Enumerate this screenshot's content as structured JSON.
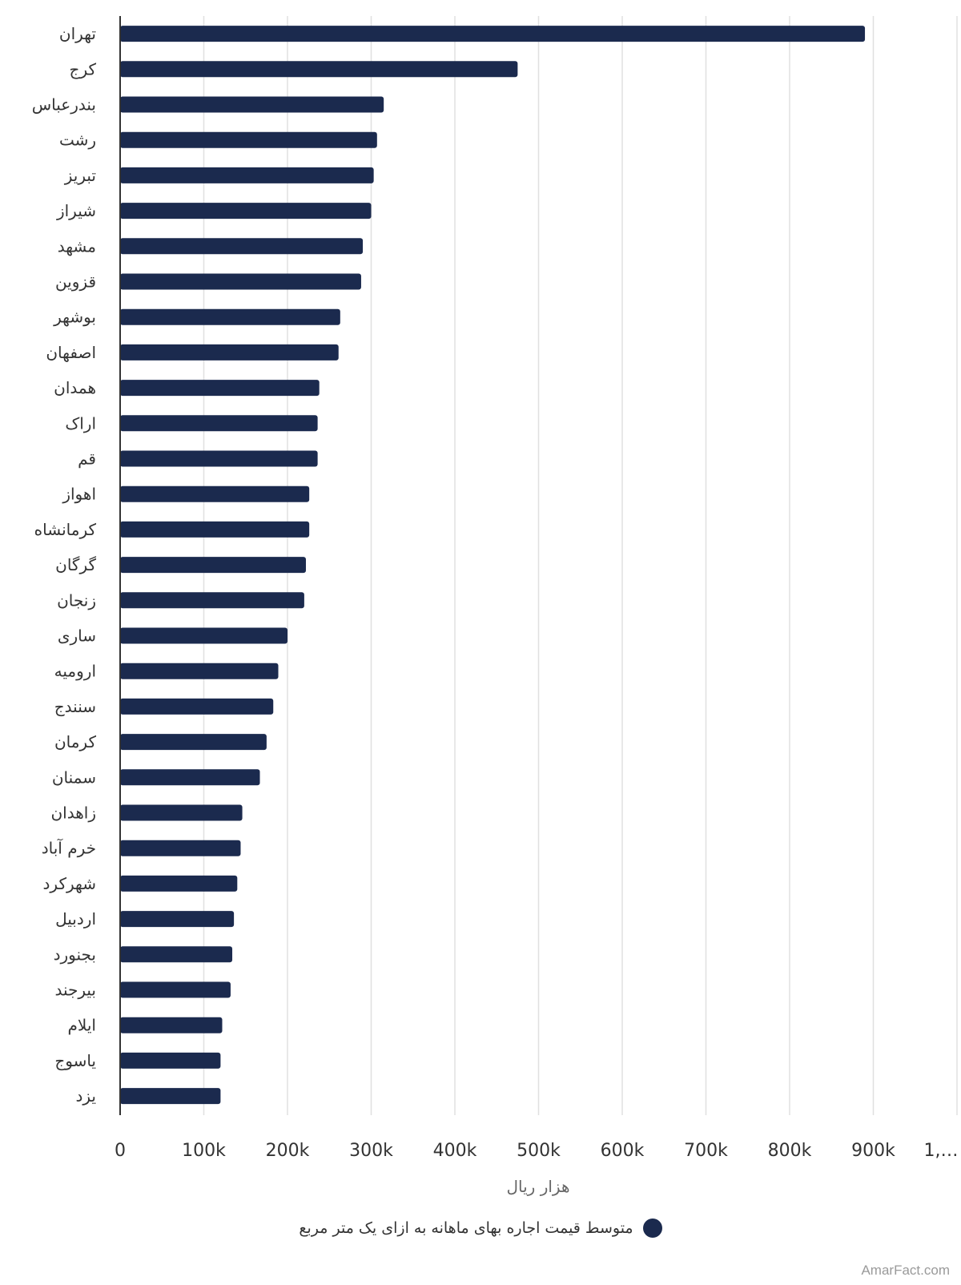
{
  "chart_data": {
    "type": "bar",
    "orientation": "horizontal",
    "categories": [
      "تهران",
      "کرج",
      "بندرعباس",
      "رشت",
      "تبریز",
      "شیراز",
      "مشهد",
      "قزوین",
      "بوشهر",
      "اصفهان",
      "همدان",
      "اراک",
      "قم",
      "اهواز",
      "کرمانشاه",
      "گرگان",
      "زنجان",
      "ساری",
      "ارومیه",
      "سنندج",
      "کرمان",
      "سمنان",
      "زاهدان",
      "خرم آباد",
      "شهرکرد",
      "اردبیل",
      "بجنورد",
      "بیرجند",
      "ایلام",
      "یاسوج",
      "یزد"
    ],
    "series": [
      {
        "name": "متوسط قیمت اجاره بهای ماهانه به ازای یک متر مربع",
        "color": "#1b2a4e",
        "values": [
          890000,
          475000,
          315000,
          307000,
          303000,
          300000,
          290000,
          288000,
          263000,
          261000,
          238000,
          236000,
          236000,
          226000,
          226000,
          222000,
          220000,
          200000,
          189000,
          183000,
          175000,
          167000,
          146000,
          144000,
          140000,
          136000,
          134000,
          132000,
          122000,
          120000,
          120000
        ]
      }
    ],
    "xlim": [
      0,
      1000000
    ],
    "x_ticks": [
      "0",
      "100k",
      "200k",
      "300k",
      "400k",
      "500k",
      "600k",
      "700k",
      "800k",
      "900k",
      "1,…"
    ],
    "xlabel": "هزار ریال",
    "ylabel": "",
    "grid": true,
    "legend_position": "bottom-center"
  },
  "footer": {
    "source": "AmarFact.com"
  },
  "colors": {
    "bar": "#1b2a4e",
    "grid": "#e0e0e0",
    "axis": "#333333",
    "label_text": "#333333",
    "axis_title": "#666666"
  }
}
